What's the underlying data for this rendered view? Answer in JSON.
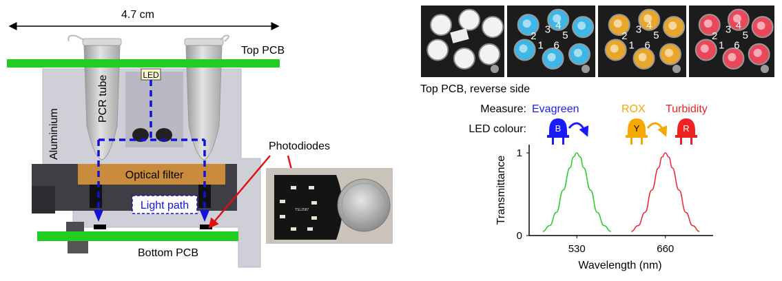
{
  "schematic": {
    "dimension_label": "4.7 cm",
    "top_pcb_label": "Top PCB",
    "led_label": "LED",
    "pcr_tube_label": "PCR tube",
    "aluminium_label": "Aluminium",
    "optical_filter_label": "Optical filter",
    "light_path_label": "Light path",
    "bottom_pcb_label": "Bottom PCB",
    "photodiodes_label": "Photodiodes",
    "photodiode_board_text": "TSL2587"
  },
  "photos": {
    "caption": "Top PCB, reverse side",
    "well_numbers": [
      "1",
      "2",
      "3",
      "4",
      "5",
      "6"
    ],
    "panel_tints": [
      "#2a2a2a",
      "#3fb7e6",
      "#e8a62a",
      "#e8485a"
    ]
  },
  "leds": {
    "measure_label": "Measure:",
    "colour_label": "LED colour:",
    "evagreen": {
      "label": "Evagreen",
      "letter": "B",
      "color": "#1a1aff"
    },
    "rox": {
      "label": "ROX",
      "letter": "Y",
      "color": "#f5a800"
    },
    "turbidity": {
      "label": "Turbidity",
      "letter": "R",
      "color": "#ee2222"
    }
  },
  "chart_data": {
    "type": "line",
    "xlabel": "Wavelength (nm)",
    "ylabel": "Transmittance",
    "xlim": [
      460,
      730
    ],
    "ylim": [
      0,
      1
    ],
    "x_ticks": [
      530,
      660
    ],
    "y_ticks": [
      0,
      1
    ],
    "grid": false,
    "series": [
      {
        "color": "#22cc22",
        "x": [
          480,
          490,
          500,
          510,
          520,
          525,
          530,
          535,
          540,
          550,
          560,
          570,
          580
        ],
        "values": [
          0.05,
          0.12,
          0.28,
          0.55,
          0.82,
          0.95,
          1.0,
          0.95,
          0.82,
          0.55,
          0.28,
          0.12,
          0.05
        ]
      },
      {
        "color": "#ee2233",
        "x": [
          610,
          620,
          630,
          640,
          650,
          655,
          660,
          665,
          670,
          680,
          690,
          700,
          710
        ],
        "values": [
          0.05,
          0.12,
          0.28,
          0.55,
          0.82,
          0.95,
          1.0,
          0.95,
          0.82,
          0.55,
          0.28,
          0.12,
          0.05
        ]
      }
    ]
  }
}
